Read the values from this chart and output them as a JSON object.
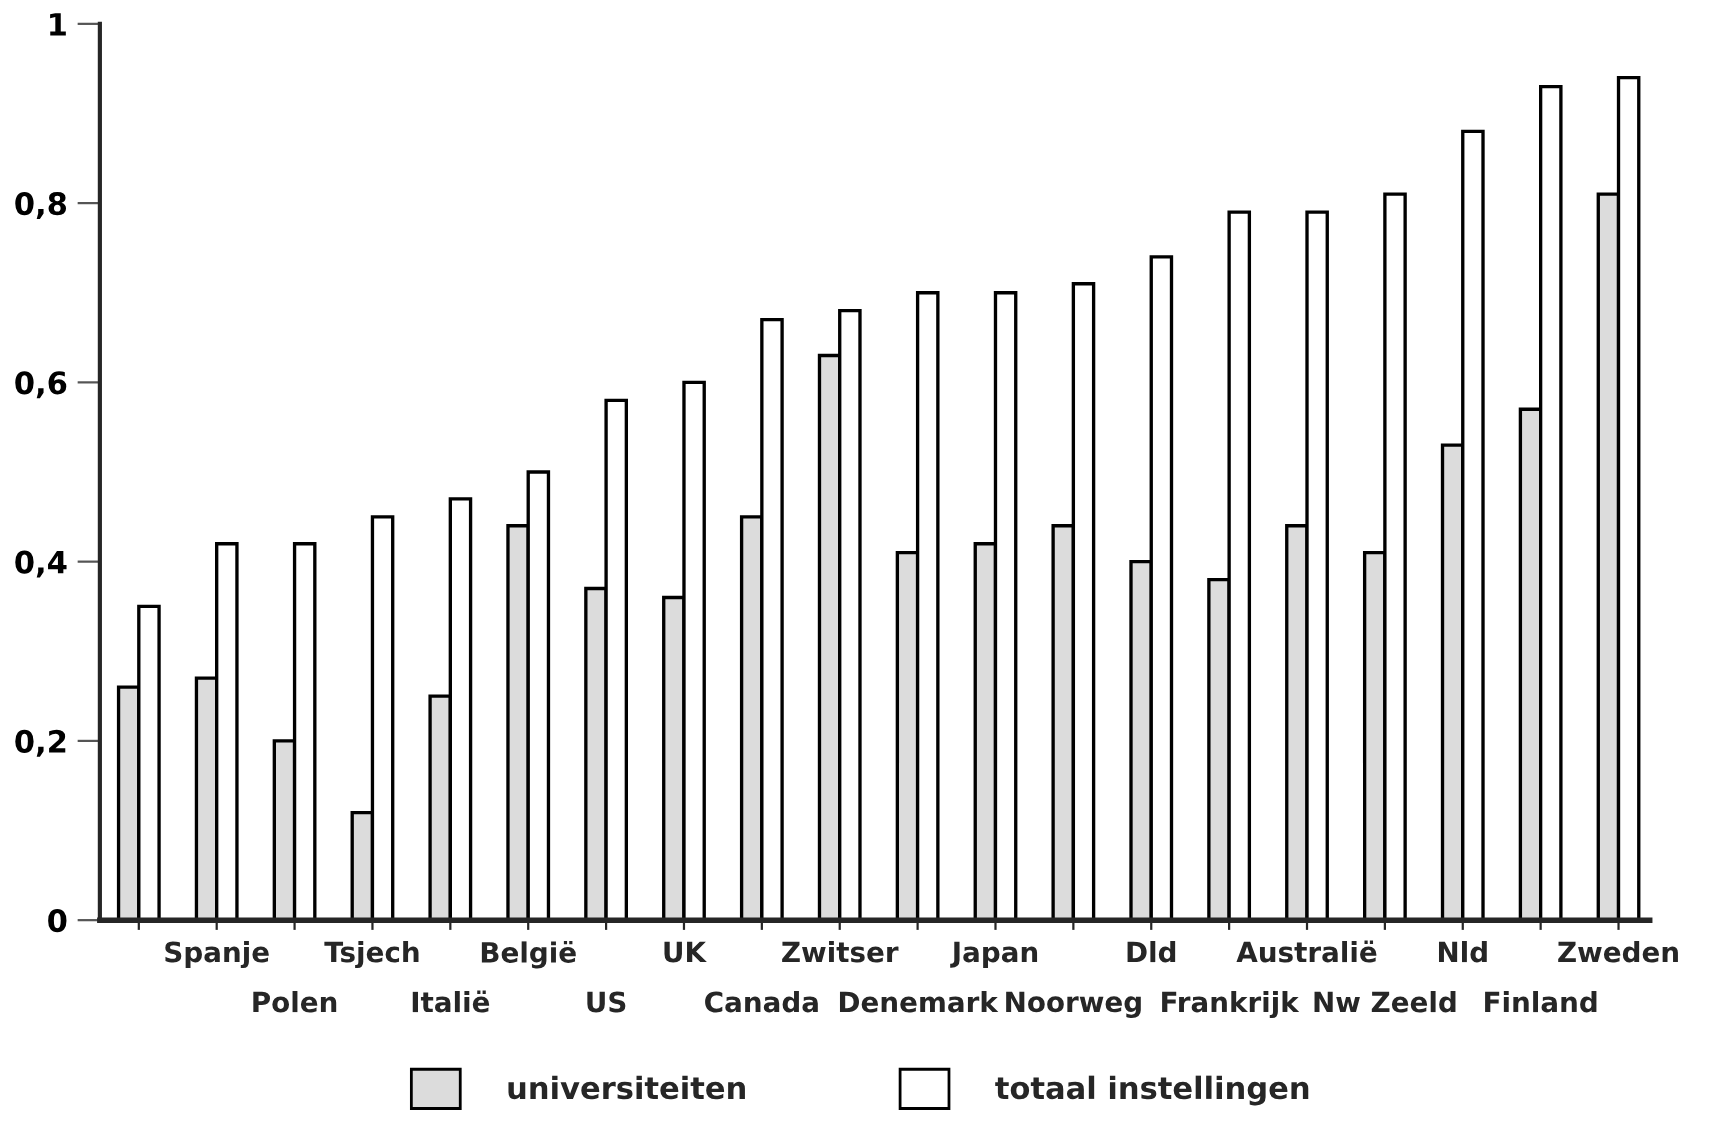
{
  "chart_data": {
    "type": "bar",
    "categories": [
      null,
      "Spanje",
      "Polen",
      "Tsjech",
      "Italië",
      "België",
      "US",
      "UK",
      "Canada",
      "Zwitser",
      "Denemark",
      "Japan",
      "Noorweg",
      "Dld",
      "Frankrijk",
      "Australië",
      "Nw Zeeld",
      "Nld",
      "Finland",
      "Zweden"
    ],
    "series": [
      {
        "name": "universiteiten",
        "color": "#dcdcdc",
        "values": [
          0.26,
          0.27,
          0.2,
          0.12,
          0.25,
          0.44,
          0.37,
          0.36,
          0.45,
          0.63,
          0.41,
          0.42,
          0.44,
          0.4,
          0.38,
          0.44,
          0.41,
          0.53,
          0.57,
          0.81
        ]
      },
      {
        "name": "totaal instellingen",
        "color": "#ffffff",
        "values": [
          0.35,
          0.42,
          0.42,
          0.45,
          0.47,
          0.5,
          0.58,
          0.6,
          0.67,
          0.68,
          0.7,
          0.7,
          0.71,
          0.74,
          0.79,
          0.79,
          0.81,
          0.88,
          0.93,
          0.94
        ]
      }
    ],
    "ylim": [
      0,
      1
    ],
    "yticks": [
      {
        "value": 0,
        "label": "0"
      },
      {
        "value": 0.2,
        "label": "0,2"
      },
      {
        "value": 0.4,
        "label": "0,4"
      },
      {
        "value": 0.6,
        "label": "0,6"
      },
      {
        "value": 0.8,
        "label": "0,8"
      },
      {
        "value": 1,
        "label": "1"
      }
    ],
    "grid": false,
    "legend": "bottom"
  }
}
